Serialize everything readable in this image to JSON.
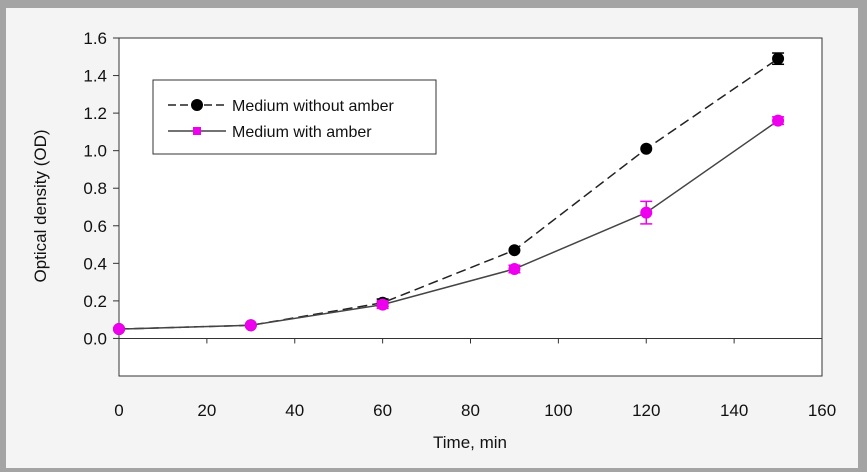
{
  "chart_data": {
    "type": "line",
    "xlabel": "Time, min",
    "ylabel": "Optical density (OD)",
    "xlim": [
      0,
      160
    ],
    "ylim": [
      -0.2,
      1.6
    ],
    "x_ticks": [
      "0",
      "20",
      "40",
      "60",
      "80",
      "100",
      "120",
      "140",
      "160"
    ],
    "y_ticks": [
      "0.0",
      "0.2",
      "0.4",
      "0.6",
      "0.8",
      "1.0",
      "1.2",
      "1.4",
      "1.6"
    ],
    "x_tick_values": [
      0,
      20,
      40,
      60,
      80,
      100,
      120,
      140,
      160
    ],
    "y_tick_values": [
      0.0,
      0.2,
      0.4,
      0.6,
      0.8,
      1.0,
      1.2,
      1.4,
      1.6
    ],
    "grid": false,
    "legend_position": "top-left",
    "series": [
      {
        "name": "Medium without amber",
        "color": "#000000",
        "line_style": "dashed",
        "marker": "circle",
        "x": [
          0,
          30,
          60,
          90,
          120,
          150
        ],
        "y": [
          0.05,
          0.07,
          0.19,
          0.47,
          1.01,
          1.49
        ],
        "error": [
          0.0,
          0.0,
          0.02,
          0.0,
          0.0,
          0.03
        ]
      },
      {
        "name": "Medium with amber",
        "color": "#ee00ee",
        "line_style": "solid",
        "marker": "square",
        "x": [
          0,
          30,
          60,
          90,
          120,
          150
        ],
        "y": [
          0.05,
          0.07,
          0.18,
          0.37,
          0.67,
          1.16
        ],
        "error": [
          0.0,
          0.0,
          0.02,
          0.02,
          0.06,
          0.02
        ]
      }
    ]
  }
}
